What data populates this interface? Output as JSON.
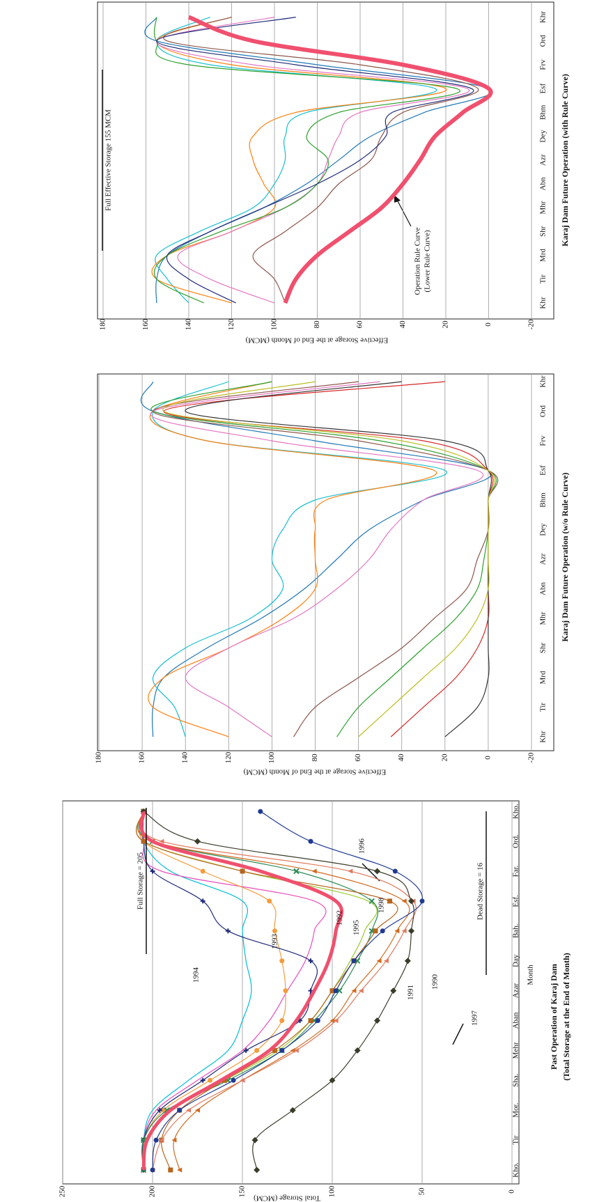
{
  "chart_data": [
    {
      "type": "line",
      "title": "Past Operation of Karaj Dam",
      "subtitle": "(Total Storage at the End of Month)",
      "x_label": "Month",
      "y_label": "Total Storage (MCM)",
      "categories": [
        "Kho.",
        "Tir",
        "Mor.",
        "Sha.",
        "Mehr",
        "Aban",
        "Azar",
        "Day",
        "Bah.",
        "Esf.",
        "Far.",
        "Ord.",
        "Kho."
      ],
      "ylim": [
        0,
        250
      ],
      "yticks": [
        0,
        50,
        100,
        150,
        200,
        250
      ],
      "grid": true,
      "annotations": [
        "Full Storage = 205",
        "Dead Storage = 16",
        "1994",
        "1993",
        "1992",
        "1995",
        "1998",
        "1991",
        "1990",
        "1997",
        "1996"
      ],
      "series": [
        {
          "color": "#00bcd4",
          "values": [
            205,
            205,
            200,
            180,
            158,
            150,
            145,
            148,
            150,
            150,
            190,
            205,
            205
          ]
        },
        {
          "color": "#e84dbb",
          "values": [
            205,
            205,
            198,
            175,
            150,
            135,
            125,
            115,
            110,
            110,
            195,
            205,
            205
          ]
        },
        {
          "color": "#f39c3c",
          "marker": "circle",
          "values": [
            205,
            205,
            194,
            168,
            142,
            128,
            126,
            128,
            132,
            135,
            172,
            205,
            205
          ]
        },
        {
          "color": "#1e2a78",
          "marker": "plus",
          "values": [
            205,
            205,
            196,
            172,
            148,
            118,
            112,
            112,
            158,
            172,
            200,
            205,
            205
          ]
        },
        {
          "color": "#9acd32",
          "values": [
            205,
            204,
            190,
            160,
            130,
            112,
            100,
            90,
            82,
            80,
            150,
            205,
            205
          ]
        },
        {
          "color": "#2e8b57",
          "marker": "x",
          "values": [
            205,
            205,
            192,
            158,
            128,
            110,
            96,
            86,
            78,
            78,
            120,
            200,
            205
          ]
        },
        {
          "color": "#b5651d",
          "marker": "square",
          "values": [
            190,
            195,
            185,
            160,
            132,
            112,
            100,
            88,
            76,
            68,
            150,
            205,
            205
          ]
        },
        {
          "color": "#d2691e",
          "marker": "triangle",
          "values": [
            185,
            188,
            175,
            150,
            122,
            100,
            88,
            74,
            64,
            60,
            110,
            200,
            205
          ]
        },
        {
          "color": "#e07a5f",
          "marker": "triangle",
          "values": [
            200,
            195,
            180,
            150,
            120,
            98,
            84,
            70,
            60,
            55,
            90,
            195,
            205
          ]
        },
        {
          "color": "#3b3b2a",
          "marker": "diamond",
          "values": [
            142,
            143,
            122,
            100,
            86,
            75,
            66,
            58,
            56,
            56,
            75,
            175,
            205
          ]
        },
        {
          "color": "#1f3a93",
          "marker": "circle",
          "values": [
            200,
            198,
            185,
            155,
            128,
            108,
            98,
            88,
            72,
            50,
            65,
            112,
            140
          ]
        },
        {
          "color": "#f0506e",
          "width": 5,
          "values": [
            205,
            203,
            190,
            162,
            135,
            120,
            110,
            102,
            98,
            98,
            140,
            200,
            205
          ]
        }
      ]
    },
    {
      "type": "line",
      "title": "Karaj Dam Future Operation (w/o Rule Curve)",
      "y_label": "Effective Storage at the End of Month (MCM)",
      "categories": [
        "Khr",
        "Tir",
        "Mrd",
        "Shr",
        "Mhr",
        "Abn",
        "Azr",
        "Dey",
        "Bhm",
        "Esf",
        "Frv",
        "Ord",
        "Khr"
      ],
      "ylim": [
        -20,
        180
      ],
      "yticks": [
        -20,
        0,
        20,
        40,
        60,
        80,
        100,
        120,
        140,
        160,
        180
      ],
      "grid": true,
      "series": [
        {
          "color": "#1f77b4",
          "values": [
            155,
            155,
            150,
            130,
            105,
            85,
            70,
            55,
            30,
            0,
            80,
            155,
            155
          ]
        },
        {
          "color": "#17becf",
          "values": [
            140,
            145,
            155,
            140,
            110,
            95,
            100,
            95,
            80,
            20,
            130,
            155,
            120
          ]
        },
        {
          "color": "#ff7f0e",
          "values": [
            120,
            155,
            150,
            120,
            95,
            80,
            80,
            80,
            75,
            25,
            130,
            155,
            100
          ]
        },
        {
          "color": "#e377c2",
          "values": [
            100,
            120,
            140,
            120,
            90,
            70,
            55,
            45,
            30,
            5,
            100,
            155,
            50
          ]
        },
        {
          "color": "#2ca02c",
          "values": [
            70,
            60,
            45,
            30,
            15,
            5,
            2,
            0,
            0,
            0,
            50,
            155,
            100
          ]
        },
        {
          "color": "#d62728",
          "values": [
            45,
            30,
            15,
            5,
            0,
            0,
            0,
            0,
            0,
            0,
            30,
            150,
            20
          ]
        },
        {
          "color": "#333333",
          "values": [
            20,
            5,
            0,
            0,
            0,
            0,
            0,
            0,
            0,
            0,
            20,
            140,
            40
          ]
        },
        {
          "color": "#8c564b",
          "values": [
            90,
            80,
            60,
            40,
            25,
            10,
            5,
            0,
            0,
            0,
            60,
            155,
            60
          ]
        },
        {
          "color": "#bcbd22",
          "values": [
            60,
            45,
            30,
            15,
            5,
            0,
            0,
            0,
            0,
            0,
            40,
            150,
            80
          ]
        }
      ]
    },
    {
      "type": "line",
      "title": "Karaj Dam Future Operation (with Rule Curve)",
      "y_label": "Effective Storage at the End of Month (MCM)",
      "categories": [
        "Khr",
        "Tir",
        "Mrd",
        "Shr",
        "Mhr",
        "Abn",
        "Azr",
        "Dey",
        "Bhm",
        "Esf",
        "Frv",
        "Ord",
        "Khr"
      ],
      "ylim": [
        -20,
        180
      ],
      "yticks": [
        -20,
        0,
        20,
        40,
        60,
        80,
        100,
        120,
        140,
        160,
        180
      ],
      "grid": true,
      "annotations": [
        "Full Effective Storage 155 MCM",
        "Operation Rule Curve",
        "(Lower Rule Curve)"
      ],
      "series": [
        {
          "color": "#1f77b4",
          "values": [
            155,
            155,
            150,
            130,
            105,
            85,
            70,
            55,
            30,
            0,
            80,
            155,
            155
          ]
        },
        {
          "color": "#17becf",
          "values": [
            140,
            150,
            155,
            135,
            110,
            100,
            95,
            95,
            85,
            25,
            130,
            155,
            130
          ]
        },
        {
          "color": "#ff7f0e",
          "values": [
            120,
            155,
            150,
            120,
            100,
            105,
            110,
            110,
            90,
            20,
            120,
            155,
            120
          ]
        },
        {
          "color": "#e377c2",
          "values": [
            100,
            130,
            145,
            120,
            95,
            80,
            75,
            70,
            60,
            10,
            110,
            155,
            100
          ]
        },
        {
          "color": "#2ca02c",
          "values": [
            133,
            155,
            150,
            125,
            95,
            80,
            75,
            85,
            70,
            15,
            140,
            155,
            155
          ]
        },
        {
          "color": "#8c564b",
          "values": [
            95,
            100,
            110,
            95,
            80,
            70,
            55,
            50,
            40,
            5,
            60,
            150,
            120
          ]
        },
        {
          "color": "#1e2a78",
          "values": [
            118,
            140,
            150,
            130,
            105,
            80,
            60,
            48,
            45,
            8,
            90,
            155,
            90
          ]
        },
        {
          "color": "#f0506e",
          "width": 6,
          "values": [
            95,
            90,
            80,
            65,
            50,
            40,
            32,
            25,
            12,
            0,
            40,
            110,
            140
          ]
        }
      ]
    }
  ]
}
